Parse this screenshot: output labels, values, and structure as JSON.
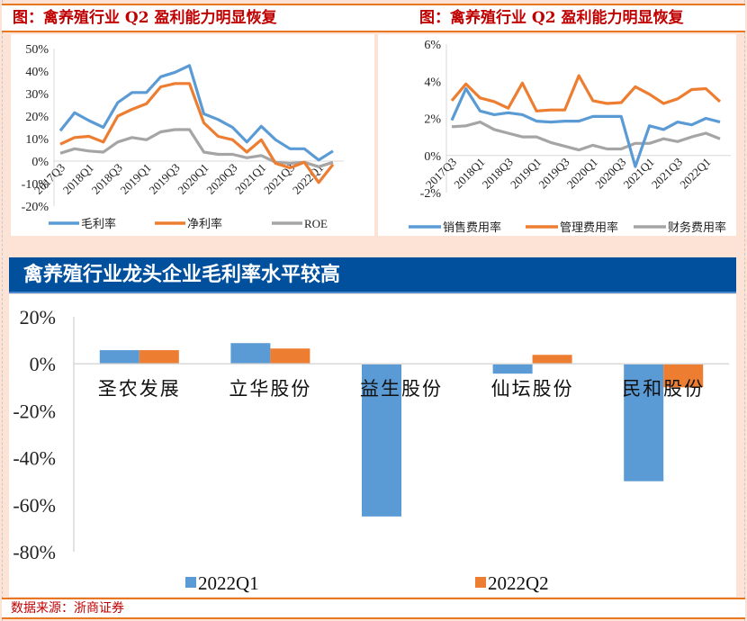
{
  "top_left": {
    "title": "图：禽养殖行业 Q2 盈利能力明显恢复"
  },
  "top_right": {
    "title": "图：禽养殖行业 Q2 盈利能力明显恢复"
  },
  "banner": {
    "title": "禽养殖行业龙头企业毛利率水平较高"
  },
  "footer": {
    "source": "数据来源：浙商证券"
  },
  "colors": {
    "blue": "#5b9bd5",
    "orange": "#ed7d31",
    "gray": "#a5a5a5",
    "title_red": "#c00000",
    "banner_blue": "#00509e"
  },
  "chart_data": [
    {
      "type": "line",
      "title": "图：禽养殖行业 Q2 盈利能力明显恢复",
      "x": [
        "2017Q3",
        "2017Q4",
        "2018Q1",
        "2018Q2",
        "2018Q3",
        "2018Q4",
        "2019Q1",
        "2019Q2",
        "2019Q3",
        "2019Q4",
        "2020Q1",
        "2020Q2",
        "2020Q3",
        "2020Q4",
        "2021Q1",
        "2021Q2",
        "2021Q3",
        "2021Q4",
        "2022Q1",
        "2022Q2"
      ],
      "x_tick_labels": [
        "2017Q3",
        "2018Q1",
        "2018Q3",
        "2019Q1",
        "2019Q3",
        "2020Q1",
        "2020Q3",
        "2021Q1",
        "2021Q3",
        "2022Q1"
      ],
      "y_ticks": [
        "50%",
        "40%",
        "30%",
        "20%",
        "10%",
        "0%",
        "-10%",
        "-20%"
      ],
      "ylim": [
        -20,
        50
      ],
      "yunit": "%",
      "legend": "bottom",
      "series": [
        {
          "name": "毛利率",
          "color": "#5b9bd5",
          "values": [
            13.5,
            21.5,
            18,
            15,
            26,
            30.5,
            30.5,
            37.5,
            39.5,
            42.5,
            21,
            18.5,
            15,
            8.5,
            15.5,
            9.5,
            5.5,
            5.5,
            0.5,
            4.5
          ]
        },
        {
          "name": "净利率",
          "color": "#ed7d31",
          "values": [
            7.5,
            10.5,
            11,
            8.5,
            20,
            23,
            25.5,
            33,
            34.5,
            34.5,
            17,
            11,
            9.5,
            4,
            9.5,
            -1,
            -3,
            -0.5,
            -9.5,
            -1.5
          ]
        },
        {
          "name": "ROE",
          "color": "#a5a5a5",
          "values": [
            3.5,
            5.5,
            4.5,
            4,
            8.5,
            10.5,
            9.5,
            13,
            14,
            14,
            4,
            3,
            3,
            1.5,
            2.5,
            -0.5,
            -1,
            -0.5,
            -2.5,
            -0.5
          ]
        }
      ]
    },
    {
      "type": "line",
      "title": "图：禽养殖行业 Q2 盈利能力明显恢复",
      "x": [
        "2017Q3",
        "2017Q4",
        "2018Q1",
        "2018Q2",
        "2018Q3",
        "2018Q4",
        "2019Q1",
        "2019Q2",
        "2019Q3",
        "2019Q4",
        "2020Q1",
        "2020Q2",
        "2020Q3",
        "2020Q4",
        "2021Q1",
        "2021Q2",
        "2021Q3",
        "2021Q4",
        "2022Q1",
        "2022Q2"
      ],
      "x_tick_labels": [
        "2017Q3",
        "2018Q1",
        "2018Q3",
        "2019Q1",
        "2019Q3",
        "2020Q1",
        "2020Q3",
        "2021Q1",
        "2021Q3",
        "2022Q1"
      ],
      "y_ticks": [
        "6%",
        "4%",
        "2%",
        "0%",
        "-2%"
      ],
      "ylim": [
        -2,
        6
      ],
      "yunit": "%",
      "legend": "bottom",
      "series": [
        {
          "name": "销售费用率",
          "color": "#5b9bd5",
          "values": [
            1.9,
            3.6,
            2.4,
            2.2,
            2.3,
            2.2,
            1.85,
            1.8,
            1.85,
            1.85,
            2.1,
            2.1,
            2.1,
            -0.6,
            1.6,
            1.4,
            1.8,
            1.65,
            2.0,
            1.8
          ]
        },
        {
          "name": "管理费用率",
          "color": "#ed7d31",
          "values": [
            2.95,
            3.85,
            3.1,
            2.9,
            2.55,
            3.9,
            2.4,
            2.45,
            2.45,
            4.3,
            2.95,
            2.8,
            2.85,
            3.7,
            3.3,
            2.8,
            3.05,
            3.55,
            3.6,
            2.9
          ]
        },
        {
          "name": "财务费用率",
          "color": "#a5a5a5",
          "values": [
            1.55,
            1.6,
            1.8,
            1.4,
            1.2,
            1.0,
            1.0,
            0.7,
            0.5,
            0.3,
            0.55,
            0.35,
            0.35,
            0.65,
            0.65,
            0.9,
            0.75,
            1.0,
            1.2,
            0.9
          ]
        }
      ]
    },
    {
      "type": "bar",
      "title": "禽养殖行业龙头企业毛利率水平较高",
      "categories": [
        "圣农发展",
        "立华股份",
        "益生股份",
        "仙坛股份",
        "民和股份"
      ],
      "y_ticks": [
        "20%",
        "0%",
        "-20%",
        "-40%",
        "-60%",
        "-80%"
      ],
      "ylim": [
        -80,
        20
      ],
      "yunit": "%",
      "legend": "bottom",
      "series": [
        {
          "name": "2022Q1",
          "color": "#5b9bd5",
          "values": [
            5.8,
            8.8,
            -65,
            -4.2,
            -50
          ]
        },
        {
          "name": "2022Q2",
          "color": "#ed7d31",
          "values": [
            5.8,
            6.5,
            -0.3,
            3.8,
            -10
          ]
        }
      ]
    }
  ]
}
